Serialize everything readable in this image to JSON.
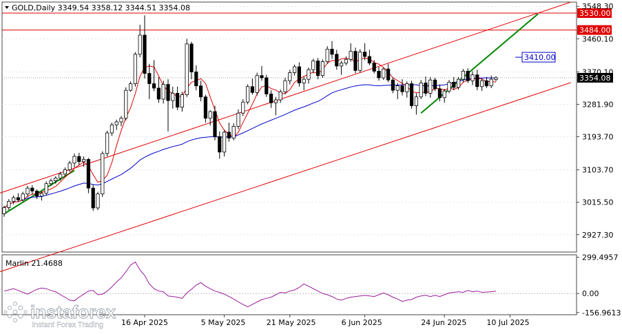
{
  "header": {
    "symbol_info": "GOLD,Daily  3349.54 3358.12 3344.51 3354.08"
  },
  "indicator": {
    "label": "Marlin 21.4688"
  },
  "watermark": {
    "brand": "instaforex",
    "tagline": "Instant Forex Trading"
  },
  "colors": {
    "bull_candle": "#ffffff",
    "bear_candle": "#000000",
    "channel": "#e00000",
    "levels": "#e00000",
    "trend": "#008800",
    "ma_slow": "#0000cc",
    "ma_fast": "#e00000",
    "oscillator": "#9b1b9b"
  },
  "chart_data": {
    "type": "candlestick",
    "price_axis": {
      "ylim": [
        2880,
        3560
      ],
      "ticks": [
        "3548.30",
        "3460.10",
        "3370.10",
        "3281.90",
        "3193.70",
        "3103.70",
        "3015.50",
        "2927.30"
      ]
    },
    "time_axis": {
      "labels": [
        "16 Apr 2025",
        "5 May 2025",
        "21 May 2025",
        "6 Jun 2025",
        "24 Jun 2025",
        "10 Jul 2025"
      ]
    },
    "levels": [
      {
        "label": "3530.00",
        "value": 3530
      },
      {
        "label": "3484.00",
        "value": 3484
      }
    ],
    "target_label": {
      "label": "3410.00",
      "value": 3410
    },
    "current_price": {
      "label": "3354.08",
      "value": 3354.08
    },
    "candles": [
      [
        2984,
        3006,
        2976,
        3001
      ],
      [
        3001,
        3024,
        2994,
        3018
      ],
      [
        3018,
        3034,
        3010,
        3028
      ],
      [
        3028,
        3040,
        3016,
        3022
      ],
      [
        3022,
        3044,
        3018,
        3038
      ],
      [
        3038,
        3060,
        3030,
        3054
      ],
      [
        3054,
        3062,
        3036,
        3046
      ],
      [
        3046,
        3050,
        3024,
        3032
      ],
      [
        3032,
        3046,
        3020,
        3040
      ],
      [
        3040,
        3072,
        3034,
        3066
      ],
      [
        3066,
        3080,
        3060,
        3074
      ],
      [
        3074,
        3086,
        3066,
        3081
      ],
      [
        3081,
        3098,
        3074,
        3092
      ],
      [
        3092,
        3110,
        3086,
        3104
      ],
      [
        3104,
        3128,
        3098,
        3122
      ],
      [
        3122,
        3148,
        3110,
        3140
      ],
      [
        3140,
        3150,
        3116,
        3126
      ],
      [
        3126,
        3140,
        3112,
        3132
      ],
      [
        3132,
        3136,
        3040,
        3054
      ],
      [
        3054,
        3064,
        2992,
        3000
      ],
      [
        3000,
        3044,
        2994,
        3038
      ],
      [
        3038,
        3154,
        3030,
        3148
      ],
      [
        3148,
        3210,
        3140,
        3204
      ],
      [
        3204,
        3232,
        3196,
        3226
      ],
      [
        3226,
        3240,
        3212,
        3234
      ],
      [
        3234,
        3250,
        3222,
        3244
      ],
      [
        3244,
        3328,
        3238,
        3320
      ],
      [
        3320,
        3344,
        3316,
        3338
      ],
      [
        3338,
        3424,
        3330,
        3418
      ],
      [
        3418,
        3498,
        3410,
        3470
      ],
      [
        3470,
        3524,
        3352,
        3366
      ],
      [
        3366,
        3392,
        3296,
        3338
      ],
      [
        3338,
        3402,
        3318,
        3326
      ],
      [
        3326,
        3356,
        3286,
        3296
      ],
      [
        3296,
        3346,
        3284,
        3336
      ],
      [
        3336,
        3350,
        3208,
        3292
      ],
      [
        3292,
        3330,
        3270,
        3312
      ],
      [
        3312,
        3330,
        3266,
        3274
      ],
      [
        3274,
        3316,
        3262,
        3308
      ],
      [
        3308,
        3460,
        3302,
        3446
      ],
      [
        3446,
        3452,
        3350,
        3370
      ],
      [
        3370,
        3388,
        3320,
        3332
      ],
      [
        3332,
        3346,
        3290,
        3302
      ],
      [
        3302,
        3308,
        3232,
        3244
      ],
      [
        3244,
        3266,
        3224,
        3262
      ],
      [
        3262,
        3278,
        3184,
        3194
      ],
      [
        3194,
        3208,
        3134,
        3152
      ],
      [
        3152,
        3212,
        3140,
        3206
      ],
      [
        3206,
        3232,
        3180,
        3190
      ],
      [
        3190,
        3230,
        3184,
        3222
      ],
      [
        3222,
        3268,
        3214,
        3258
      ],
      [
        3258,
        3296,
        3250,
        3288
      ],
      [
        3288,
        3336,
        3282,
        3330
      ],
      [
        3330,
        3352,
        3308,
        3314
      ],
      [
        3314,
        3368,
        3306,
        3360
      ],
      [
        3360,
        3386,
        3346,
        3354
      ],
      [
        3354,
        3362,
        3302,
        3310
      ],
      [
        3310,
        3320,
        3272,
        3286
      ],
      [
        3286,
        3302,
        3252,
        3294
      ],
      [
        3294,
        3322,
        3286,
        3316
      ],
      [
        3316,
        3354,
        3310,
        3346
      ],
      [
        3346,
        3376,
        3336,
        3368
      ],
      [
        3368,
        3390,
        3360,
        3384
      ],
      [
        3384,
        3396,
        3330,
        3340
      ],
      [
        3340,
        3356,
        3320,
        3350
      ],
      [
        3350,
        3382,
        3338,
        3376
      ],
      [
        3376,
        3406,
        3366,
        3400
      ],
      [
        3400,
        3408,
        3350,
        3360
      ],
      [
        3360,
        3404,
        3354,
        3398
      ],
      [
        3398,
        3440,
        3392,
        3432
      ],
      [
        3432,
        3454,
        3406,
        3418
      ],
      [
        3418,
        3430,
        3376,
        3386
      ],
      [
        3386,
        3400,
        3362,
        3394
      ],
      [
        3394,
        3412,
        3388,
        3404
      ],
      [
        3404,
        3448,
        3398,
        3426
      ],
      [
        3426,
        3436,
        3366,
        3374
      ],
      [
        3374,
        3432,
        3368,
        3424
      ],
      [
        3424,
        3448,
        3402,
        3412
      ],
      [
        3412,
        3430,
        3388,
        3394
      ],
      [
        3394,
        3402,
        3366,
        3372
      ],
      [
        3372,
        3384,
        3346,
        3354
      ],
      [
        3354,
        3382,
        3348,
        3378
      ],
      [
        3378,
        3392,
        3342,
        3348
      ],
      [
        3348,
        3356,
        3312,
        3320
      ],
      [
        3320,
        3340,
        3296,
        3332
      ],
      [
        3332,
        3350,
        3306,
        3316
      ],
      [
        3316,
        3344,
        3300,
        3338
      ],
      [
        3338,
        3346,
        3270,
        3278
      ],
      [
        3278,
        3312,
        3254,
        3302
      ],
      [
        3302,
        3348,
        3296,
        3340
      ],
      [
        3340,
        3358,
        3304,
        3312
      ],
      [
        3312,
        3356,
        3300,
        3348
      ],
      [
        3348,
        3354,
        3318,
        3324
      ],
      [
        3324,
        3336,
        3290,
        3300
      ],
      [
        3300,
        3324,
        3286,
        3318
      ],
      [
        3318,
        3348,
        3312,
        3342
      ],
      [
        3342,
        3356,
        3320,
        3328
      ],
      [
        3328,
        3356,
        3322,
        3350
      ],
      [
        3350,
        3378,
        3342,
        3372
      ],
      [
        3372,
        3380,
        3340,
        3346
      ],
      [
        3346,
        3372,
        3334,
        3362
      ],
      [
        3362,
        3376,
        3320,
        3330
      ],
      [
        3330,
        3352,
        3318,
        3346
      ],
      [
        3346,
        3356,
        3326,
        3332
      ],
      [
        3332,
        3360,
        3326,
        3350
      ],
      [
        3349.54,
        3358.12,
        3344.51,
        3354.08
      ]
    ],
    "osc_axis": {
      "ylim": [
        -175,
        320
      ],
      "ticks": [
        "299.4957",
        "0.00",
        "-156.9613"
      ]
    },
    "oscillator_values": [
      20,
      30,
      40,
      25,
      10,
      -5,
      15,
      35,
      45,
      40,
      25,
      15,
      -10,
      -30,
      -55,
      -60,
      -30,
      -5,
      20,
      25,
      -10,
      -5,
      20,
      55,
      95,
      130,
      180,
      235,
      260,
      195,
      150,
      80,
      40,
      20,
      15,
      -20,
      -25,
      -30,
      -40,
      5,
      35,
      70,
      90,
      60,
      40,
      20,
      10,
      -5,
      -25,
      -45,
      -70,
      -90,
      -110,
      -90,
      -70,
      -50,
      -40,
      -30,
      -10,
      10,
      5,
      20,
      30,
      50,
      80,
      60,
      40,
      20,
      0,
      -10,
      -25,
      -45,
      -55,
      -40,
      -30,
      -25,
      -20,
      -15,
      -20,
      -25,
      -10,
      5,
      -10,
      -30,
      -45,
      -65,
      -55,
      -50,
      -30,
      -20,
      -15,
      -25,
      -15,
      -25,
      -10,
      5,
      10,
      15,
      10,
      25,
      15,
      20,
      10,
      12,
      15,
      20
    ]
  }
}
